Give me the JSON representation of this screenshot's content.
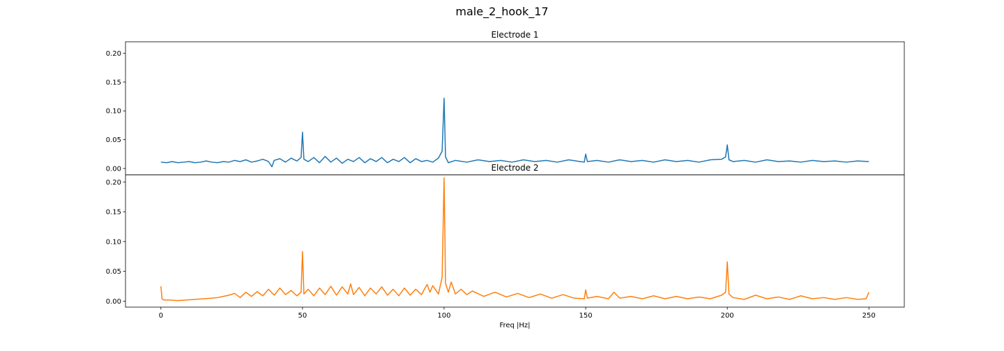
{
  "figure": {
    "title": "male_2_hook_17"
  },
  "chart_data": [
    {
      "type": "line",
      "title": "Electrode 1",
      "xlabel": "",
      "ylabel": "",
      "xlim": [
        -12.5,
        262.5
      ],
      "ylim": [
        -0.011,
        0.22
      ],
      "xticks": [],
      "yticks": [
        0.0,
        0.05,
        0.1,
        0.15,
        0.2
      ],
      "ytick_labels": [
        "0.00",
        "0.05",
        "0.10",
        "0.15",
        "0.20"
      ],
      "color": "#1f77b4",
      "series": [
        {
          "x": [
            0,
            2,
            4,
            6,
            8,
            10,
            12,
            14,
            16,
            18,
            20,
            22,
            24,
            26,
            28,
            30,
            32,
            34,
            36,
            38,
            39.2,
            40,
            42,
            44,
            46,
            48,
            49.5,
            50,
            50.5,
            52,
            54,
            56,
            58,
            60,
            62,
            64,
            66,
            68,
            70,
            72,
            74,
            76,
            78,
            80,
            82,
            84,
            86,
            88,
            90,
            92,
            94,
            96,
            98,
            99.3,
            100,
            100.5,
            101.5,
            104,
            108,
            112,
            116,
            120,
            124,
            128,
            132,
            136,
            140,
            144,
            148,
            149.5,
            150,
            150.6,
            154,
            158,
            162,
            166,
            170,
            174,
            178,
            182,
            186,
            190,
            194,
            198,
            199.4,
            200,
            200.6,
            202,
            206,
            210,
            214,
            218,
            222,
            226,
            230,
            234,
            238,
            242,
            246,
            250
          ],
          "y": [
            0.011,
            0.01,
            0.012,
            0.01,
            0.011,
            0.012,
            0.01,
            0.011,
            0.013,
            0.011,
            0.01,
            0.012,
            0.011,
            0.014,
            0.012,
            0.015,
            0.011,
            0.013,
            0.016,
            0.012,
            0.003,
            0.014,
            0.017,
            0.011,
            0.018,
            0.013,
            0.019,
            0.063,
            0.016,
            0.012,
            0.019,
            0.01,
            0.021,
            0.011,
            0.018,
            0.009,
            0.016,
            0.012,
            0.019,
            0.01,
            0.017,
            0.012,
            0.019,
            0.01,
            0.016,
            0.012,
            0.019,
            0.01,
            0.017,
            0.012,
            0.014,
            0.011,
            0.018,
            0.03,
            0.122,
            0.02,
            0.01,
            0.014,
            0.011,
            0.015,
            0.012,
            0.014,
            0.011,
            0.015,
            0.012,
            0.014,
            0.011,
            0.015,
            0.012,
            0.011,
            0.025,
            0.012,
            0.014,
            0.011,
            0.015,
            0.012,
            0.014,
            0.011,
            0.015,
            0.012,
            0.014,
            0.011,
            0.015,
            0.016,
            0.02,
            0.041,
            0.015,
            0.012,
            0.014,
            0.011,
            0.015,
            0.012,
            0.013,
            0.011,
            0.014,
            0.012,
            0.013,
            0.011,
            0.013,
            0.012
          ]
        }
      ]
    },
    {
      "type": "line",
      "title": "Electrode 2",
      "xlabel": "Freq |Hz|",
      "ylabel": "",
      "xlim": [
        -12.5,
        262.5
      ],
      "ylim": [
        -0.01,
        0.212
      ],
      "xticks": [
        0,
        50,
        100,
        150,
        200,
        250
      ],
      "xtick_labels": [
        "0",
        "50",
        "100",
        "150",
        "200",
        "250"
      ],
      "yticks": [
        0.0,
        0.05,
        0.1,
        0.15,
        0.2
      ],
      "ytick_labels": [
        "0.00",
        "0.05",
        "0.10",
        "0.15",
        "0.20"
      ],
      "color": "#ff7f0e",
      "series": [
        {
          "x": [
            0,
            0.4,
            1,
            3,
            6,
            9,
            12,
            15,
            18,
            20,
            22,
            24,
            26,
            28,
            30,
            32,
            34,
            36,
            38,
            40,
            42,
            44,
            46,
            48,
            49.5,
            50,
            50.5,
            52,
            54,
            56,
            58,
            60,
            62,
            64,
            66,
            67,
            68,
            70,
            72,
            74,
            76,
            78,
            80,
            82,
            84,
            86,
            88,
            90,
            92,
            94,
            95,
            96,
            98,
            99.3,
            100,
            100.5,
            101.5,
            102.5,
            104,
            106,
            108,
            110,
            114,
            118,
            122,
            126,
            130,
            134,
            138,
            142,
            146,
            149.5,
            150,
            150.6,
            154,
            158,
            160,
            162,
            166,
            170,
            174,
            178,
            182,
            186,
            190,
            194,
            198,
            199.4,
            200,
            200.6,
            202,
            206,
            210,
            214,
            218,
            222,
            226,
            230,
            234,
            238,
            242,
            246,
            249,
            250
          ],
          "y": [
            0.025,
            0.004,
            0.002,
            0.002,
            0.001,
            0.002,
            0.003,
            0.004,
            0.005,
            0.006,
            0.008,
            0.01,
            0.013,
            0.006,
            0.015,
            0.008,
            0.016,
            0.009,
            0.02,
            0.01,
            0.022,
            0.011,
            0.018,
            0.009,
            0.015,
            0.083,
            0.012,
            0.02,
            0.009,
            0.022,
            0.011,
            0.025,
            0.01,
            0.024,
            0.012,
            0.029,
            0.011,
            0.023,
            0.009,
            0.022,
            0.012,
            0.024,
            0.01,
            0.02,
            0.009,
            0.022,
            0.01,
            0.02,
            0.011,
            0.028,
            0.015,
            0.026,
            0.012,
            0.04,
            0.207,
            0.03,
            0.015,
            0.032,
            0.012,
            0.02,
            0.011,
            0.017,
            0.008,
            0.015,
            0.007,
            0.013,
            0.006,
            0.012,
            0.005,
            0.011,
            0.005,
            0.004,
            0.019,
            0.005,
            0.008,
            0.004,
            0.015,
            0.005,
            0.008,
            0.004,
            0.009,
            0.004,
            0.008,
            0.004,
            0.007,
            0.004,
            0.01,
            0.015,
            0.066,
            0.012,
            0.006,
            0.003,
            0.01,
            0.004,
            0.007,
            0.003,
            0.009,
            0.004,
            0.006,
            0.003,
            0.006,
            0.003,
            0.004,
            0.015
          ]
        }
      ]
    }
  ]
}
